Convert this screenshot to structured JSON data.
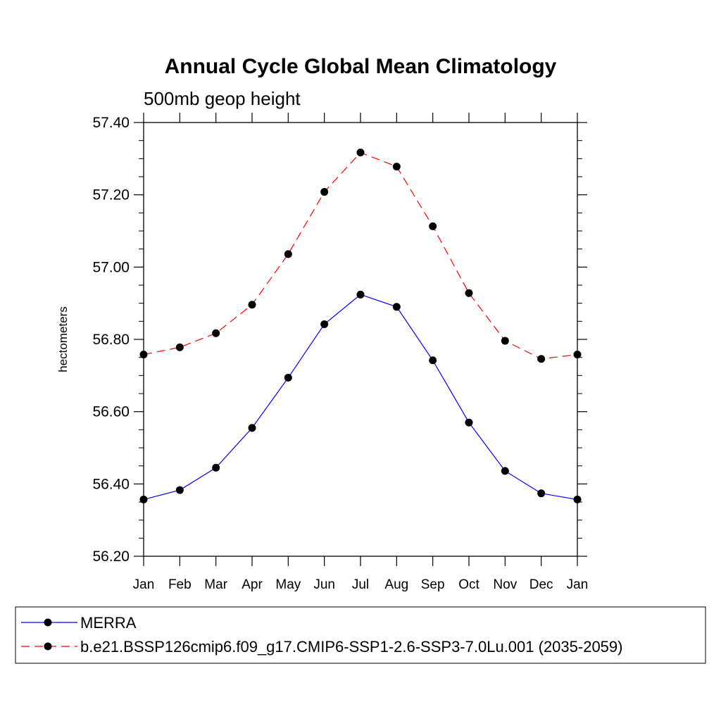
{
  "chart_data": {
    "type": "line",
    "title": "Annual Cycle Global Mean Climatology",
    "subtitle": "500mb geop height",
    "ylabel": "hectometers",
    "xlabel": "",
    "categories": [
      "Jan",
      "Feb",
      "Mar",
      "Apr",
      "May",
      "Jun",
      "Jul",
      "Aug",
      "Sep",
      "Oct",
      "Nov",
      "Dec",
      "Jan"
    ],
    "ylim": [
      56.2,
      57.4
    ],
    "yticks": [
      "56.20",
      "56.40",
      "56.60",
      "56.80",
      "57.00",
      "57.20",
      "57.40"
    ],
    "grid": false,
    "legend_position": "bottom",
    "series": [
      {
        "name": "MERRA",
        "color": "#0000ff",
        "dash": "solid",
        "marker": "filled-circle",
        "values": [
          56.357,
          56.383,
          56.445,
          56.555,
          56.694,
          56.842,
          56.924,
          56.89,
          56.742,
          56.57,
          56.436,
          56.374,
          56.357
        ]
      },
      {
        "name": "b.e21.BSSP126cmip6.f09_g17.CMIP6-SSP1-2.6-SSP3-7.0Lu.001 (2035-2059)",
        "color": "#ff0000",
        "dash": "dashed",
        "marker": "filled-circle",
        "values": [
          56.758,
          56.778,
          56.817,
          56.896,
          57.036,
          57.208,
          57.317,
          57.278,
          57.113,
          56.928,
          56.796,
          56.746,
          56.758
        ]
      }
    ]
  }
}
